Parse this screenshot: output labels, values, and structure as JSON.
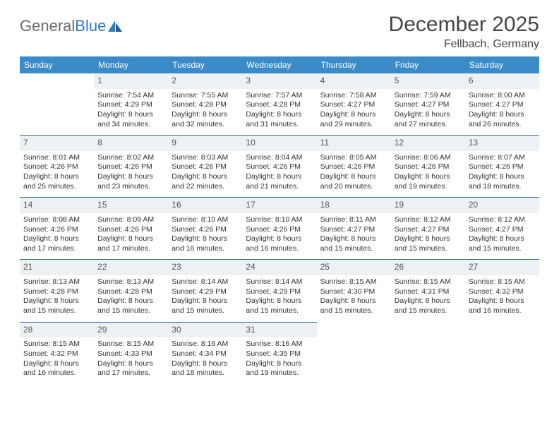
{
  "brand": {
    "part1": "General",
    "part2": "Blue"
  },
  "title": "December 2025",
  "location": "Fellbach, Germany",
  "colors": {
    "header_bg": "#3b8bc9",
    "daynum_bg": "#eef1f3",
    "row_divider": "#2e6ea3",
    "brand_blue": "#2f7cc0",
    "text": "#333333"
  },
  "day_headers": [
    "Sunday",
    "Monday",
    "Tuesday",
    "Wednesday",
    "Thursday",
    "Friday",
    "Saturday"
  ],
  "weeks": [
    [
      null,
      {
        "n": "1",
        "sr": "7:54 AM",
        "ss": "4:29 PM",
        "dl": "8 hours and 34 minutes."
      },
      {
        "n": "2",
        "sr": "7:55 AM",
        "ss": "4:28 PM",
        "dl": "8 hours and 32 minutes."
      },
      {
        "n": "3",
        "sr": "7:57 AM",
        "ss": "4:28 PM",
        "dl": "8 hours and 31 minutes."
      },
      {
        "n": "4",
        "sr": "7:58 AM",
        "ss": "4:27 PM",
        "dl": "8 hours and 29 minutes."
      },
      {
        "n": "5",
        "sr": "7:59 AM",
        "ss": "4:27 PM",
        "dl": "8 hours and 27 minutes."
      },
      {
        "n": "6",
        "sr": "8:00 AM",
        "ss": "4:27 PM",
        "dl": "8 hours and 26 minutes."
      }
    ],
    [
      {
        "n": "7",
        "sr": "8:01 AM",
        "ss": "4:26 PM",
        "dl": "8 hours and 25 minutes."
      },
      {
        "n": "8",
        "sr": "8:02 AM",
        "ss": "4:26 PM",
        "dl": "8 hours and 23 minutes."
      },
      {
        "n": "9",
        "sr": "8:03 AM",
        "ss": "4:26 PM",
        "dl": "8 hours and 22 minutes."
      },
      {
        "n": "10",
        "sr": "8:04 AM",
        "ss": "4:26 PM",
        "dl": "8 hours and 21 minutes."
      },
      {
        "n": "11",
        "sr": "8:05 AM",
        "ss": "4:26 PM",
        "dl": "8 hours and 20 minutes."
      },
      {
        "n": "12",
        "sr": "8:06 AM",
        "ss": "4:26 PM",
        "dl": "8 hours and 19 minutes."
      },
      {
        "n": "13",
        "sr": "8:07 AM",
        "ss": "4:26 PM",
        "dl": "8 hours and 18 minutes."
      }
    ],
    [
      {
        "n": "14",
        "sr": "8:08 AM",
        "ss": "4:26 PM",
        "dl": "8 hours and 17 minutes."
      },
      {
        "n": "15",
        "sr": "8:09 AM",
        "ss": "4:26 PM",
        "dl": "8 hours and 17 minutes."
      },
      {
        "n": "16",
        "sr": "8:10 AM",
        "ss": "4:26 PM",
        "dl": "8 hours and 16 minutes."
      },
      {
        "n": "17",
        "sr": "8:10 AM",
        "ss": "4:26 PM",
        "dl": "8 hours and 16 minutes."
      },
      {
        "n": "18",
        "sr": "8:11 AM",
        "ss": "4:27 PM",
        "dl": "8 hours and 15 minutes."
      },
      {
        "n": "19",
        "sr": "8:12 AM",
        "ss": "4:27 PM",
        "dl": "8 hours and 15 minutes."
      },
      {
        "n": "20",
        "sr": "8:12 AM",
        "ss": "4:27 PM",
        "dl": "8 hours and 15 minutes."
      }
    ],
    [
      {
        "n": "21",
        "sr": "8:13 AM",
        "ss": "4:28 PM",
        "dl": "8 hours and 15 minutes."
      },
      {
        "n": "22",
        "sr": "8:13 AM",
        "ss": "4:28 PM",
        "dl": "8 hours and 15 minutes."
      },
      {
        "n": "23",
        "sr": "8:14 AM",
        "ss": "4:29 PM",
        "dl": "8 hours and 15 minutes."
      },
      {
        "n": "24",
        "sr": "8:14 AM",
        "ss": "4:29 PM",
        "dl": "8 hours and 15 minutes."
      },
      {
        "n": "25",
        "sr": "8:15 AM",
        "ss": "4:30 PM",
        "dl": "8 hours and 15 minutes."
      },
      {
        "n": "26",
        "sr": "8:15 AM",
        "ss": "4:31 PM",
        "dl": "8 hours and 15 minutes."
      },
      {
        "n": "27",
        "sr": "8:15 AM",
        "ss": "4:32 PM",
        "dl": "8 hours and 16 minutes."
      }
    ],
    [
      {
        "n": "28",
        "sr": "8:15 AM",
        "ss": "4:32 PM",
        "dl": "8 hours and 16 minutes."
      },
      {
        "n": "29",
        "sr": "8:15 AM",
        "ss": "4:33 PM",
        "dl": "8 hours and 17 minutes."
      },
      {
        "n": "30",
        "sr": "8:16 AM",
        "ss": "4:34 PM",
        "dl": "8 hours and 18 minutes."
      },
      {
        "n": "31",
        "sr": "8:16 AM",
        "ss": "4:35 PM",
        "dl": "8 hours and 19 minutes."
      },
      null,
      null,
      null
    ]
  ],
  "labels": {
    "sunrise": "Sunrise: ",
    "sunset": "Sunset: ",
    "daylight": "Daylight: "
  }
}
